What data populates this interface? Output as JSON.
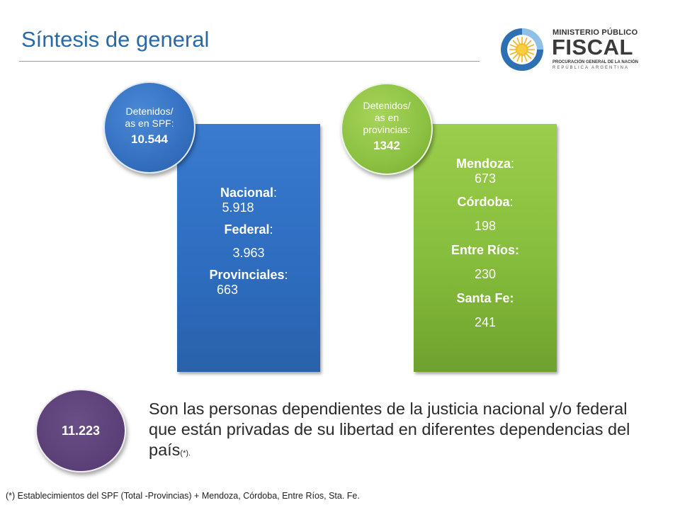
{
  "title": "Síntesis de general",
  "logo": {
    "line1": "MINISTERIO PÚBLICO",
    "line2": "FISCAL",
    "line3": "PROCURACIÓN GENERAL DE LA NACIÓN",
    "line4": "REPÚBLICA ARGENTINA"
  },
  "spf": {
    "bubble_label_1": "Detenidos/",
    "bubble_label_2": "as en SPF:",
    "bubble_value": "10.544",
    "items": [
      {
        "name": "Nacional",
        "sep": ":",
        "value": "5.918"
      },
      {
        "name": "Federal",
        "sep": ":",
        "value": "3.963"
      },
      {
        "name": "Provinciales",
        "sep": ":",
        "value": "663"
      }
    ]
  },
  "provincias": {
    "bubble_label_1": "Detenidos/",
    "bubble_label_2": "as en",
    "bubble_label_3": "provincias:",
    "bubble_value": "1342",
    "items": [
      {
        "name": "Mendoza",
        "sep": ":",
        "value": "673"
      },
      {
        "name": "Córdoba",
        "sep": ":",
        "value": "198"
      },
      {
        "name": "Entre Ríos:",
        "sep": "",
        "value": "230"
      },
      {
        "name": "Santa Fe:",
        "sep": "",
        "value": "241"
      }
    ]
  },
  "total": {
    "value": "11.223",
    "description": "Son las personas dependientes de la justicia nacional y/o federal que están privadas de su libertad en diferentes dependencias del país",
    "note_mark": "(*)."
  },
  "footnote": "(*) Establecimientos del SPF (Total -Provincias)  + Mendoza, Córdoba, Entre Ríos, Sta. Fe.",
  "colors": {
    "title": "#2a69a8",
    "blue_panel": "#2d6cbe",
    "green_panel": "#86bd3c",
    "purple_circle": "#5a3f77"
  }
}
